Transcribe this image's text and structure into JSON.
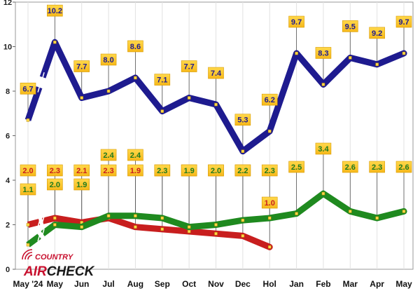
{
  "chart_data": {
    "type": "line",
    "categories": [
      "May '24",
      "May",
      "Jun",
      "Jul",
      "Aug",
      "Sep",
      "Oct",
      "Nov",
      "Dec",
      "Hol",
      "Jan",
      "Feb",
      "Mar",
      "Apr",
      "May"
    ],
    "ylim": [
      0,
      12
    ],
    "yticks": [
      0,
      2,
      4,
      6,
      8,
      10,
      12
    ],
    "grid": "vertical",
    "series": [
      {
        "color": "#1e1b8f",
        "label_color": "#1e1b8f",
        "break_after_index": 0,
        "values": [
          6.7,
          10.2,
          7.7,
          8.0,
          8.6,
          7.1,
          7.7,
          7.4,
          5.3,
          6.2,
          9.7,
          8.3,
          9.5,
          9.2,
          9.7
        ],
        "labels": [
          "6.7",
          "10.2",
          "7.7",
          "8.0",
          "8.6",
          "7.1",
          "7.7",
          "7.4",
          "5.3",
          "6.2",
          "9.7",
          "8.3",
          "9.5",
          "9.2",
          "9.7"
        ]
      },
      {
        "color": "#c81e1e",
        "label_color": "#c81e1e",
        "break_after_index": 0,
        "values": [
          2.0,
          2.3,
          2.1,
          2.3,
          1.9,
          1.8,
          1.7,
          1.6,
          1.5,
          1.0,
          null,
          null,
          null,
          null,
          null
        ],
        "labels": [
          "2.0",
          "2.3",
          "2.1",
          "2.3",
          "1.9",
          "1.8",
          "1.7",
          "1.6",
          "1.5",
          "1.0",
          "",
          "",
          "",
          "",
          ""
        ]
      },
      {
        "color": "#1f8a1f",
        "label_color": "#1f7a1f",
        "break_after_index": 0,
        "values": [
          1.1,
          2.0,
          1.9,
          2.4,
          2.4,
          2.3,
          1.9,
          2.0,
          2.2,
          2.3,
          2.5,
          3.4,
          2.6,
          2.3,
          2.6
        ],
        "labels": [
          "1.1",
          "2.0",
          "1.9",
          "2.4",
          "2.4",
          "2.3",
          "1.9",
          "2.0",
          "2.2",
          "2.3",
          "2.5",
          "3.4",
          "2.6",
          "2.3",
          "2.6"
        ]
      }
    ]
  },
  "logo": {
    "top": "COUNTRY",
    "air": "AIR",
    "check": "CHECK"
  }
}
